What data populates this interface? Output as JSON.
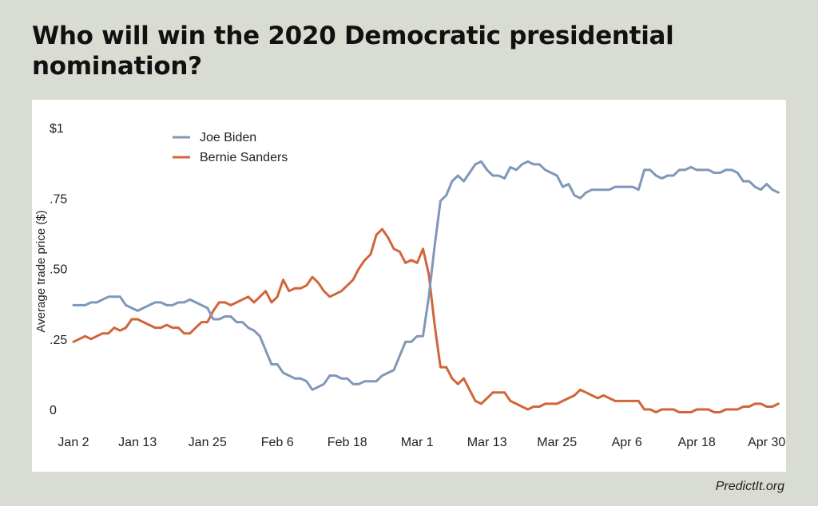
{
  "title": "Who will win the 2020 Democratic presidential nomination?",
  "source": "PredictIt.org",
  "chart_data": {
    "type": "line",
    "title": "Who will win the 2020 Democratic presidential nomination?",
    "ylabel": "Average trade price ($)",
    "xlabel": "",
    "ylim": [
      0,
      1
    ],
    "x_range": [
      "Jan 2",
      "May 1"
    ],
    "y_ticks": [
      {
        "value": 1,
        "label": "$1"
      },
      {
        "value": 0.75,
        "label": ".75"
      },
      {
        "value": 0.5,
        "label": ".50"
      },
      {
        "value": 0.25,
        "label": ".25"
      },
      {
        "value": 0,
        "label": "0"
      }
    ],
    "x_ticks": [
      {
        "day": 0,
        "label": "Jan 2"
      },
      {
        "day": 11,
        "label": "Jan 13"
      },
      {
        "day": 23,
        "label": "Jan 25"
      },
      {
        "day": 35,
        "label": "Feb 6"
      },
      {
        "day": 47,
        "label": "Feb 18"
      },
      {
        "day": 59,
        "label": "Mar 1"
      },
      {
        "day": 71,
        "label": "Mar 13"
      },
      {
        "day": 83,
        "label": "Mar 25"
      },
      {
        "day": 95,
        "label": "Apr 6"
      },
      {
        "day": 107,
        "label": "Apr 18"
      },
      {
        "day": 119,
        "label": "Apr 30"
      }
    ],
    "grid": false,
    "legend_position": "top-left",
    "series": [
      {
        "name": "Joe Biden",
        "color": "#7f97b8",
        "values": [
          0.37,
          0.37,
          0.37,
          0.38,
          0.38,
          0.39,
          0.4,
          0.4,
          0.4,
          0.37,
          0.36,
          0.35,
          0.36,
          0.37,
          0.38,
          0.38,
          0.37,
          0.37,
          0.38,
          0.38,
          0.39,
          0.38,
          0.37,
          0.36,
          0.32,
          0.32,
          0.33,
          0.33,
          0.31,
          0.31,
          0.29,
          0.28,
          0.26,
          0.21,
          0.16,
          0.16,
          0.13,
          0.12,
          0.11,
          0.11,
          0.1,
          0.07,
          0.08,
          0.09,
          0.12,
          0.12,
          0.11,
          0.11,
          0.09,
          0.09,
          0.1,
          0.1,
          0.1,
          0.12,
          0.13,
          0.14,
          0.19,
          0.24,
          0.24,
          0.26,
          0.26,
          0.4,
          0.58,
          0.74,
          0.76,
          0.81,
          0.83,
          0.81,
          0.84,
          0.87,
          0.88,
          0.85,
          0.83,
          0.83,
          0.82,
          0.86,
          0.85,
          0.87,
          0.88,
          0.87,
          0.87,
          0.85,
          0.84,
          0.83,
          0.79,
          0.8,
          0.76,
          0.75,
          0.77,
          0.78,
          0.78,
          0.78,
          0.78,
          0.79,
          0.79,
          0.79,
          0.79,
          0.78,
          0.85,
          0.85,
          0.83,
          0.82,
          0.83,
          0.83,
          0.85,
          0.85,
          0.86,
          0.85,
          0.85,
          0.85,
          0.84,
          0.84,
          0.85,
          0.85,
          0.84,
          0.81,
          0.81,
          0.79,
          0.78,
          0.8,
          0.78,
          0.77
        ]
      },
      {
        "name": "Bernie Sanders",
        "color": "#d0653a",
        "values": [
          0.24,
          0.25,
          0.26,
          0.25,
          0.26,
          0.27,
          0.27,
          0.29,
          0.28,
          0.29,
          0.32,
          0.32,
          0.31,
          0.3,
          0.29,
          0.29,
          0.3,
          0.29,
          0.29,
          0.27,
          0.27,
          0.29,
          0.31,
          0.31,
          0.35,
          0.38,
          0.38,
          0.37,
          0.38,
          0.39,
          0.4,
          0.38,
          0.4,
          0.42,
          0.38,
          0.4,
          0.46,
          0.42,
          0.43,
          0.43,
          0.44,
          0.47,
          0.45,
          0.42,
          0.4,
          0.41,
          0.42,
          0.44,
          0.46,
          0.5,
          0.53,
          0.55,
          0.62,
          0.64,
          0.61,
          0.57,
          0.56,
          0.52,
          0.53,
          0.52,
          0.57,
          0.48,
          0.3,
          0.15,
          0.15,
          0.11,
          0.09,
          0.11,
          0.07,
          0.03,
          0.02,
          0.04,
          0.06,
          0.06,
          0.06,
          0.03,
          0.02,
          0.01,
          0.0,
          0.01,
          0.01,
          0.02,
          0.02,
          0.02,
          0.03,
          0.04,
          0.05,
          0.07,
          0.06,
          0.05,
          0.04,
          0.05,
          0.04,
          0.03,
          0.03,
          0.03,
          0.03,
          0.03,
          0.0,
          0.0,
          -0.01,
          0.0,
          0.0,
          0.0,
          -0.01,
          -0.01,
          -0.01,
          0.0,
          0.0,
          0.0,
          -0.01,
          -0.01,
          0.0,
          0.0,
          0.0,
          0.01,
          0.01,
          0.02,
          0.02,
          0.01,
          0.01,
          0.02
        ]
      }
    ]
  }
}
